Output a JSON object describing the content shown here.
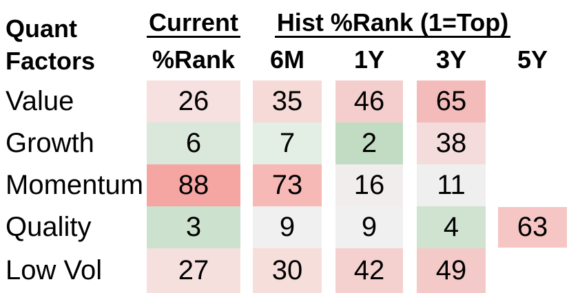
{
  "page": {
    "background": "#ffffff",
    "text_color": "#000000"
  },
  "header": {
    "title_line1": "Quant",
    "title_line2": "Factors",
    "group_current": "Current",
    "group_hist": "Hist %Rank (1=Top)",
    "columns": [
      "%Rank",
      "6M",
      "1Y",
      "3Y",
      "5Y"
    ]
  },
  "table": {
    "rows": [
      {
        "label": "Value",
        "cells": [
          {
            "value": "26",
            "color": "#f6e1e0"
          },
          {
            "value": "35",
            "color": "#f6dad8"
          },
          {
            "value": "46",
            "color": "#f4cecd"
          },
          {
            "value": "65",
            "color": "#f3bcba"
          }
        ]
      },
      {
        "label": "Growth",
        "cells": [
          {
            "value": "6",
            "color": "#d9e8da"
          },
          {
            "value": "7",
            "color": "#e3eee4"
          },
          {
            "value": "2",
            "color": "#c2dcc3"
          },
          {
            "value": "38",
            "color": "#f4dcdc"
          }
        ]
      },
      {
        "label": "Momentum",
        "cells": [
          {
            "value": "88",
            "color": "#f5a6a3"
          },
          {
            "value": "73",
            "color": "#f7b9b6"
          },
          {
            "value": "16",
            "color": "#f1edec"
          },
          {
            "value": "11",
            "color": "#efeff0"
          }
        ]
      },
      {
        "label": "Quality",
        "cells": [
          {
            "value": "3",
            "color": "#cde2ce"
          },
          {
            "value": "9",
            "color": "#f0f0f0"
          },
          {
            "value": "9",
            "color": "#f0f0f0"
          },
          {
            "value": "4",
            "color": "#cfe3d0"
          },
          {
            "value": "63",
            "color": "#f5c6c4"
          }
        ]
      },
      {
        "label": "Low Vol",
        "cells": [
          {
            "value": "27",
            "color": "#f5e0de"
          },
          {
            "value": "30",
            "color": "#f6dedb"
          },
          {
            "value": "42",
            "color": "#f4d0cf"
          },
          {
            "value": "49",
            "color": "#f4cac8"
          }
        ]
      }
    ]
  },
  "chart_data": {
    "type": "heatmap",
    "row_header_label": "Quant Factors",
    "rows": [
      "Value",
      "Growth",
      "Momentum",
      "Quality",
      "Low Vol"
    ],
    "columns": [
      "Current %Rank",
      "6M",
      "1Y",
      "3Y",
      "5Y"
    ],
    "column_groups": [
      {
        "label": "Current",
        "span": [
          "%Rank"
        ]
      },
      {
        "label": "Hist %Rank (1=Top)",
        "span": [
          "6M",
          "1Y",
          "3Y",
          "5Y"
        ]
      }
    ],
    "values": [
      [
        26,
        35,
        46,
        65,
        null
      ],
      [
        6,
        7,
        2,
        38,
        null
      ],
      [
        88,
        73,
        16,
        11,
        null
      ],
      [
        3,
        9,
        9,
        4,
        63
      ],
      [
        27,
        30,
        42,
        49,
        null
      ]
    ],
    "legend": "1=Top",
    "color_scale": {
      "low_value_color": "#c2dcc3",
      "mid_value_color": "#f0f0f0",
      "high_value_color": "#f5a6a3"
    },
    "grid": false,
    "legend_position": "none"
  }
}
